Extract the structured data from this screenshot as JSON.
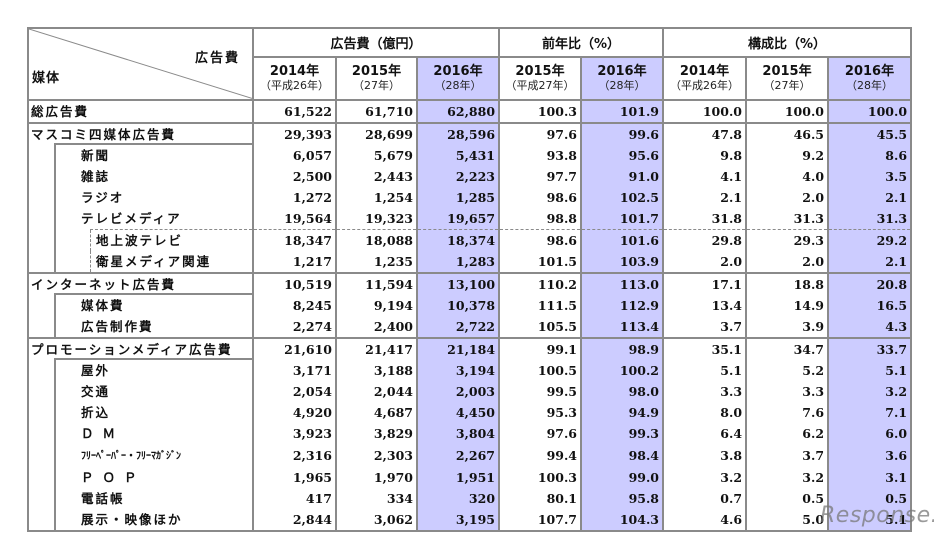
{
  "header": {
    "corner_top_right": "広告費",
    "corner_bottom_left": "媒体",
    "groups": [
      {
        "label": "広告費（億円）",
        "span": 3
      },
      {
        "label": "前年比（%）",
        "span": 2
      },
      {
        "label": "構成比（%）",
        "span": 3
      }
    ],
    "columns": [
      {
        "year": "2014年",
        "sub": "（平成26年）",
        "highlight": false
      },
      {
        "year": "2015年",
        "sub": "（27年）",
        "highlight": false
      },
      {
        "year": "2016年",
        "sub": "（28年）",
        "highlight": true
      },
      {
        "year": "2015年",
        "sub": "（平成27年）",
        "highlight": false
      },
      {
        "year": "2016年",
        "sub": "（28年）",
        "highlight": true
      },
      {
        "year": "2014年",
        "sub": "（平成26年）",
        "highlight": false
      },
      {
        "year": "2015年",
        "sub": "（27年）",
        "highlight": false
      },
      {
        "year": "2016年",
        "sub": "（28年）",
        "highlight": true
      }
    ]
  },
  "colors": {
    "highlight_column": "#ccccff",
    "border": "#8a8a8a"
  },
  "rows": [
    {
      "label": "総広告費",
      "level": 0,
      "values": [
        "61,522",
        "61,710",
        "62,880",
        "100.3",
        "101.9",
        "100.0",
        "100.0",
        "100.0"
      ]
    },
    {
      "label": "マスコミ四媒体広告費",
      "level": 0,
      "values": [
        "29,393",
        "28,699",
        "28,596",
        "97.6",
        "99.6",
        "47.8",
        "46.5",
        "45.5"
      ]
    },
    {
      "label": "新聞",
      "level": 1,
      "values": [
        "6,057",
        "5,679",
        "5,431",
        "93.8",
        "95.6",
        "9.8",
        "9.2",
        "8.6"
      ]
    },
    {
      "label": "雑誌",
      "level": 1,
      "values": [
        "2,500",
        "2,443",
        "2,223",
        "97.7",
        "91.0",
        "4.1",
        "4.0",
        "3.5"
      ]
    },
    {
      "label": "ラジオ",
      "level": 1,
      "values": [
        "1,272",
        "1,254",
        "1,285",
        "98.6",
        "102.5",
        "2.1",
        "2.0",
        "2.1"
      ]
    },
    {
      "label": "テレビメディア",
      "level": 1,
      "values": [
        "19,564",
        "19,323",
        "19,657",
        "98.8",
        "101.7",
        "31.8",
        "31.3",
        "31.3"
      ]
    },
    {
      "label": "地上波テレビ",
      "level": 2,
      "values": [
        "18,347",
        "18,088",
        "18,374",
        "98.6",
        "101.6",
        "29.8",
        "29.3",
        "29.2"
      ]
    },
    {
      "label": "衛星メディア関連",
      "level": 2,
      "values": [
        "1,217",
        "1,235",
        "1,283",
        "101.5",
        "103.9",
        "2.0",
        "2.0",
        "2.1"
      ]
    },
    {
      "label": "インターネット広告費",
      "level": 0,
      "values": [
        "10,519",
        "11,594",
        "13,100",
        "110.2",
        "113.0",
        "17.1",
        "18.8",
        "20.8"
      ]
    },
    {
      "label": "媒体費",
      "level": 1,
      "values": [
        "8,245",
        "9,194",
        "10,378",
        "111.5",
        "112.9",
        "13.4",
        "14.9",
        "16.5"
      ]
    },
    {
      "label": "広告制作費",
      "level": 1,
      "values": [
        "2,274",
        "2,400",
        "2,722",
        "105.5",
        "113.4",
        "3.7",
        "3.9",
        "4.3"
      ]
    },
    {
      "label": "プロモーションメディア広告費",
      "level": 0,
      "values": [
        "21,610",
        "21,417",
        "21,184",
        "99.1",
        "98.9",
        "35.1",
        "34.7",
        "33.7"
      ]
    },
    {
      "label": "屋外",
      "level": 1,
      "values": [
        "3,171",
        "3,188",
        "3,194",
        "100.5",
        "100.2",
        "5.1",
        "5.2",
        "5.1"
      ]
    },
    {
      "label": "交通",
      "level": 1,
      "values": [
        "2,054",
        "2,044",
        "2,003",
        "99.5",
        "98.0",
        "3.3",
        "3.3",
        "3.2"
      ]
    },
    {
      "label": "折込",
      "level": 1,
      "values": [
        "4,920",
        "4,687",
        "4,450",
        "95.3",
        "94.9",
        "8.0",
        "7.6",
        "7.1"
      ]
    },
    {
      "label": "ＤＭ",
      "level": 1,
      "values": [
        "3,923",
        "3,829",
        "3,804",
        "97.6",
        "99.3",
        "6.4",
        "6.2",
        "6.0"
      ]
    },
    {
      "label": "ﾌﾘｰﾍﾟｰﾊﾟｰ・ﾌﾘｰﾏｶﾞｼﾞﾝ",
      "level": 1,
      "values": [
        "2,316",
        "2,303",
        "2,267",
        "99.4",
        "98.4",
        "3.8",
        "3.7",
        "3.6"
      ]
    },
    {
      "label": "ＰＯＰ",
      "level": 1,
      "values": [
        "1,965",
        "1,970",
        "1,951",
        "100.3",
        "99.0",
        "3.2",
        "3.2",
        "3.1"
      ]
    },
    {
      "label": "電話帳",
      "level": 1,
      "values": [
        "417",
        "334",
        "320",
        "80.1",
        "95.8",
        "0.7",
        "0.5",
        "0.5"
      ]
    },
    {
      "label": "展示・映像ほか",
      "level": 1,
      "values": [
        "2,844",
        "3,062",
        "3,195",
        "107.7",
        "104.3",
        "4.6",
        "5.0",
        "5.1"
      ]
    }
  ],
  "watermark": "Response."
}
